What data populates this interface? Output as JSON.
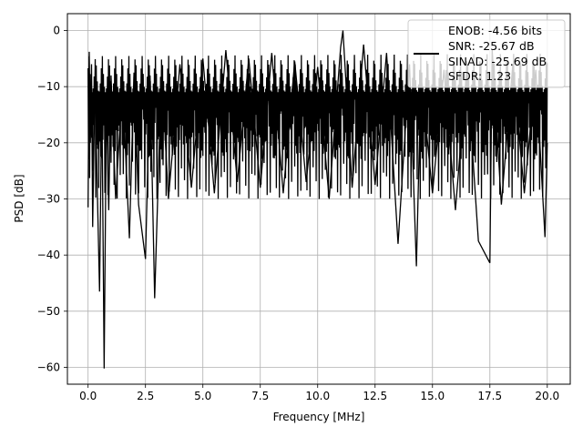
{
  "chart_data": {
    "type": "line",
    "title": "",
    "xlabel": "Frequency [MHz]",
    "ylabel": "PSD [dB]",
    "xlim": [
      -0.9,
      21.0
    ],
    "ylim": [
      -63.0,
      3.0
    ],
    "xticks": [
      0.0,
      2.5,
      5.0,
      7.5,
      10.0,
      12.5,
      15.0,
      17.5,
      20.0
    ],
    "xtick_labels": [
      "0.0",
      "2.5",
      "5.0",
      "7.5",
      "10.0",
      "12.5",
      "15.0",
      "17.5",
      "20.0"
    ],
    "yticks": [
      0,
      -10,
      -20,
      -30,
      -40,
      -50,
      -60
    ],
    "ytick_labels": [
      "0",
      "−10",
      "−20",
      "−30",
      "−40",
      "−50",
      "−60"
    ],
    "grid": true,
    "legend_position": "top-right",
    "series": [
      {
        "color": "#000000",
        "x": [
          0.0,
          0.05,
          0.1,
          0.15,
          0.2,
          0.3,
          0.4,
          0.5,
          0.6,
          0.7,
          0.8,
          0.9,
          1.0,
          1.2,
          1.5,
          1.8,
          2.0,
          2.2,
          2.5,
          2.7,
          2.9,
          3.2,
          3.5,
          4.0,
          4.5,
          5.0,
          5.5,
          6.0,
          6.5,
          7.0,
          7.5,
          8.0,
          8.5,
          9.0,
          9.5,
          10.0,
          10.5,
          11.0,
          11.1,
          11.5,
          12.0,
          12.5,
          13.0,
          13.5,
          14.0,
          14.3,
          14.5,
          15.0,
          15.5,
          16.0,
          16.5,
          17.0,
          17.5,
          17.6,
          18.0,
          18.5,
          19.0,
          19.5,
          19.9,
          20.0
        ],
        "y": [
          -31.5,
          -3.8,
          -20.0,
          -6.0,
          -35.0,
          -9.0,
          -28.0,
          -46.5,
          -11.0,
          -60.2,
          -12.0,
          -32.0,
          -8.0,
          -30.0,
          -9.5,
          -37.0,
          -7.5,
          -31.0,
          -40.7,
          -8.0,
          -47.7,
          -7.0,
          -30.0,
          -6.0,
          -28.0,
          -5.0,
          -29.0,
          -3.5,
          -27.0,
          -5.0,
          -28.0,
          -4.0,
          -29.0,
          -5.5,
          -27.0,
          -6.5,
          -30.0,
          -3.0,
          0.0,
          -28.0,
          -2.5,
          -27.5,
          -4.0,
          -38.0,
          -6.0,
          -42.0,
          -8.0,
          -29.0,
          -7.0,
          -32.0,
          -6.5,
          -37.5,
          -41.4,
          -3.5,
          -31.0,
          -6.0,
          -29.0,
          -7.0,
          -36.8,
          -20.0
        ]
      }
    ],
    "legend_lines": [
      "ENOB: -4.56 bits",
      "SNR: -25.67 dB",
      "SINAD: -25.69 dB",
      "SFDR: 1.23"
    ]
  }
}
